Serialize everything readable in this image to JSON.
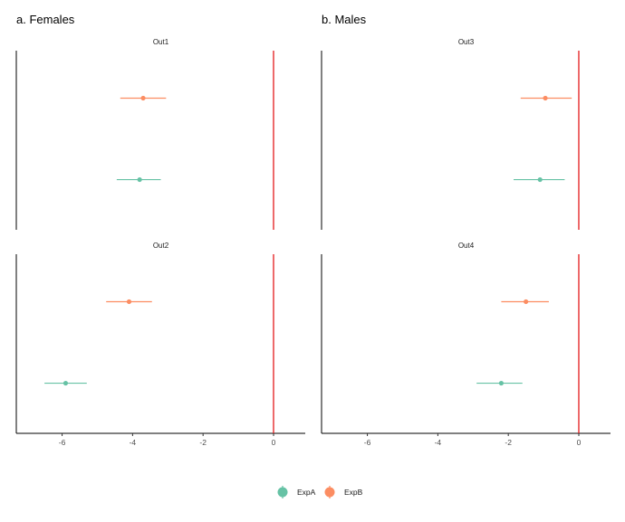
{
  "chart_data": {
    "type": "forest",
    "panels": [
      {
        "title": "a. Females",
        "facets": [
          {
            "label": "Out1",
            "points": [
              {
                "series": "ExpB",
                "estimate": -3.7,
                "lower": -4.35,
                "upper": -3.05
              },
              {
                "series": "ExpA",
                "estimate": -3.8,
                "lower": -4.45,
                "upper": -3.2
              }
            ]
          },
          {
            "label": "Out2",
            "points": [
              {
                "series": "ExpB",
                "estimate": -4.1,
                "lower": -4.75,
                "upper": -3.45
              },
              {
                "series": "ExpA",
                "estimate": -5.9,
                "lower": -6.5,
                "upper": -5.3
              }
            ]
          }
        ]
      },
      {
        "title": "b. Males",
        "facets": [
          {
            "label": "Out3",
            "points": [
              {
                "series": "ExpB",
                "estimate": -0.95,
                "lower": -1.65,
                "upper": -0.2
              },
              {
                "series": "ExpA",
                "estimate": -1.1,
                "lower": -1.85,
                "upper": -0.4
              }
            ]
          },
          {
            "label": "Out4",
            "points": [
              {
                "series": "ExpB",
                "estimate": -1.5,
                "lower": -2.2,
                "upper": -0.85
              },
              {
                "series": "ExpA",
                "estimate": -2.2,
                "lower": -2.9,
                "upper": -1.6
              }
            ]
          }
        ]
      }
    ],
    "x_ticks": [
      -6,
      -4,
      -2,
      0
    ],
    "xlim": [
      -7.3,
      0.9
    ],
    "reference_line": {
      "x": 0,
      "color": "#e41a1c"
    },
    "series": [
      {
        "name": "ExpA",
        "color": "#66c2a5"
      },
      {
        "name": "ExpB",
        "color": "#fc8d62"
      }
    ],
    "xlabel": "",
    "ylabel": "",
    "grid": false,
    "legend_position": "bottom"
  }
}
